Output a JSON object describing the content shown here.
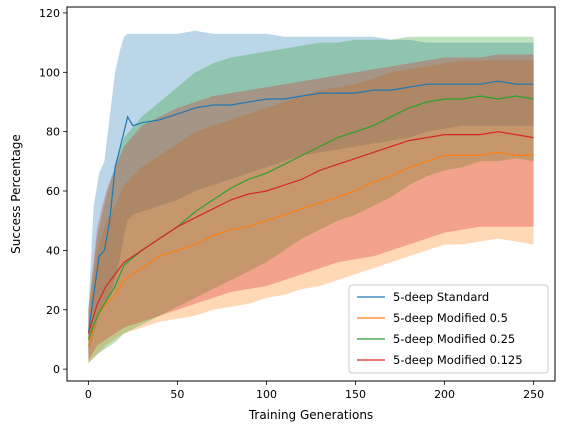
{
  "chart_data": {
    "type": "line",
    "title": "",
    "xlabel": "Training Generations",
    "ylabel": "Success Percentage",
    "xlim": [
      -12,
      262
    ],
    "ylim": [
      -4,
      122
    ],
    "xticks": [
      0,
      50,
      100,
      150,
      200,
      250
    ],
    "yticks": [
      0,
      20,
      40,
      60,
      80,
      100,
      120
    ],
    "grid": false,
    "legend_position": "lower-right",
    "series": [
      {
        "name": "5-deep Standard",
        "color": "#1f77b4",
        "x": [
          0,
          3,
          6,
          9,
          12,
          15,
          18,
          20,
          22,
          25,
          30,
          40,
          50,
          60,
          70,
          80,
          90,
          100,
          110,
          120,
          130,
          140,
          150,
          160,
          170,
          180,
          190,
          200,
          210,
          220,
          230,
          240,
          250
        ],
        "y": [
          12,
          25,
          38,
          40,
          50,
          68,
          75,
          80,
          85,
          82,
          83,
          84,
          86,
          88,
          89,
          89,
          90,
          91,
          91,
          92,
          93,
          93,
          93,
          94,
          94,
          95,
          96,
          96,
          96,
          96,
          97,
          96,
          96
        ],
        "upper": [
          20,
          55,
          66,
          70,
          85,
          100,
          108,
          112,
          113,
          113,
          113,
          113,
          113,
          114,
          113,
          113,
          113,
          113,
          112,
          112,
          112,
          112,
          112,
          112,
          111,
          111,
          110,
          110,
          110,
          110,
          110,
          110,
          110
        ],
        "lower": [
          5,
          12,
          18,
          22,
          25,
          30,
          38,
          45,
          50,
          52,
          53,
          55,
          57,
          60,
          62,
          64,
          66,
          68,
          70,
          72,
          73,
          74,
          75,
          76,
          77,
          78,
          80,
          81,
          82,
          82,
          82,
          82,
          82
        ]
      },
      {
        "name": "5-deep Modified 0.5",
        "color": "#ff7f0e",
        "x": [
          0,
          5,
          10,
          15,
          20,
          30,
          40,
          50,
          60,
          70,
          80,
          90,
          100,
          110,
          120,
          130,
          140,
          150,
          160,
          170,
          180,
          190,
          200,
          210,
          220,
          230,
          240,
          250
        ],
        "y": [
          8,
          18,
          22,
          25,
          30,
          34,
          38,
          40,
          42,
          45,
          47,
          48,
          50,
          52,
          54,
          56,
          58,
          60,
          63,
          65,
          68,
          70,
          72,
          72,
          72,
          73,
          72,
          72
        ],
        "upper": [
          15,
          40,
          50,
          55,
          62,
          68,
          72,
          76,
          80,
          82,
          84,
          86,
          88,
          90,
          92,
          94,
          95,
          96,
          98,
          100,
          101,
          102,
          103,
          104,
          104,
          104,
          104,
          104
        ],
        "lower": [
          2,
          5,
          8,
          10,
          12,
          14,
          16,
          17,
          18,
          20,
          21,
          22,
          24,
          25,
          27,
          28,
          30,
          32,
          34,
          36,
          38,
          40,
          42,
          42,
          43,
          44,
          43,
          42
        ]
      },
      {
        "name": "5-deep Modified 0.25",
        "color": "#2ca02c",
        "x": [
          0,
          5,
          10,
          15,
          20,
          30,
          40,
          50,
          60,
          70,
          80,
          90,
          100,
          110,
          120,
          130,
          140,
          150,
          160,
          170,
          180,
          190,
          200,
          210,
          220,
          230,
          240,
          250
        ],
        "y": [
          10,
          18,
          23,
          28,
          35,
          40,
          44,
          48,
          53,
          57,
          61,
          64,
          66,
          69,
          72,
          75,
          78,
          80,
          82,
          85,
          88,
          90,
          91,
          91,
          92,
          91,
          92,
          91
        ],
        "upper": [
          20,
          45,
          58,
          68,
          78,
          85,
          90,
          95,
          100,
          103,
          105,
          106,
          107,
          108,
          109,
          110,
          110,
          111,
          111,
          111,
          112,
          112,
          112,
          112,
          112,
          112,
          112,
          112
        ],
        "lower": [
          2,
          5,
          7,
          9,
          12,
          15,
          18,
          21,
          24,
          27,
          30,
          33,
          36,
          40,
          44,
          47,
          50,
          52,
          55,
          58,
          62,
          65,
          67,
          68,
          70,
          70,
          71,
          70
        ]
      },
      {
        "name": "5-deep Modified 0.125",
        "color": "#d62728",
        "x": [
          0,
          5,
          10,
          15,
          20,
          30,
          40,
          50,
          60,
          70,
          80,
          90,
          100,
          110,
          120,
          130,
          140,
          150,
          160,
          170,
          180,
          190,
          200,
          210,
          220,
          230,
          240,
          250
        ],
        "y": [
          12,
          22,
          28,
          32,
          36,
          40,
          44,
          48,
          51,
          54,
          57,
          59,
          60,
          62,
          64,
          67,
          69,
          71,
          73,
          75,
          77,
          78,
          79,
          79,
          79,
          80,
          79,
          78
        ],
        "upper": [
          20,
          48,
          60,
          68,
          75,
          82,
          85,
          88,
          90,
          92,
          93,
          94,
          95,
          96,
          97,
          98,
          99,
          100,
          101,
          102,
          103,
          104,
          105,
          105,
          105,
          106,
          106,
          106
        ],
        "lower": [
          3,
          8,
          10,
          12,
          14,
          16,
          18,
          20,
          22,
          24,
          26,
          27,
          28,
          30,
          32,
          34,
          36,
          37,
          38,
          40,
          42,
          44,
          46,
          47,
          48,
          48,
          48,
          48
        ]
      }
    ]
  }
}
